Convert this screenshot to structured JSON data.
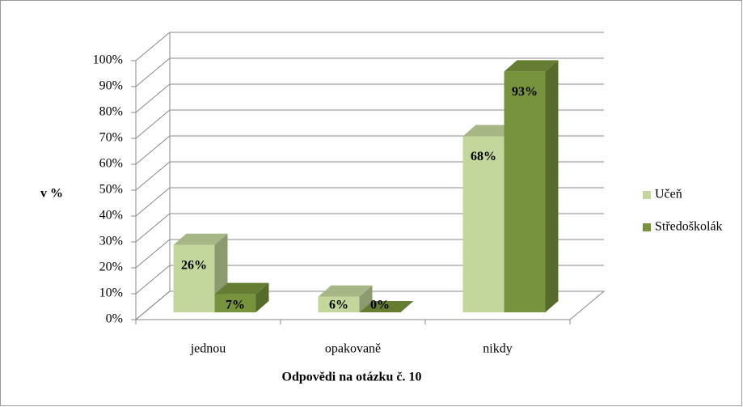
{
  "chart_data": {
    "type": "bar3d",
    "y_axis_label": "v %",
    "x_axis_label": "Odpovědi na otázku č. 10",
    "categories": [
      "jednou",
      "opakovaně",
      "nikdy"
    ],
    "series": [
      {
        "name": "Učeň",
        "color": "#c3d69b",
        "values": [
          26,
          6,
          68
        ],
        "value_labels": [
          "26%",
          "6%",
          "68%"
        ]
      },
      {
        "name": "Středoškolák",
        "color": "#77933c",
        "values": [
          7,
          0,
          93
        ],
        "value_labels": [
          "7%",
          "0%",
          "93%"
        ]
      }
    ],
    "ylim": [
      0,
      100
    ],
    "yticks": [
      {
        "value": 0,
        "label": "0%"
      },
      {
        "value": 10,
        "label": "10%"
      },
      {
        "value": 20,
        "label": "20%"
      },
      {
        "value": 30,
        "label": "30%"
      },
      {
        "value": 40,
        "label": "40%"
      },
      {
        "value": 50,
        "label": "50%"
      },
      {
        "value": 60,
        "label": "60%"
      },
      {
        "value": 70,
        "label": "70%"
      },
      {
        "value": 80,
        "label": "80%"
      },
      {
        "value": 90,
        "label": "90%"
      },
      {
        "value": 100,
        "label": "100%"
      }
    ],
    "grid": true,
    "legend": "right"
  }
}
